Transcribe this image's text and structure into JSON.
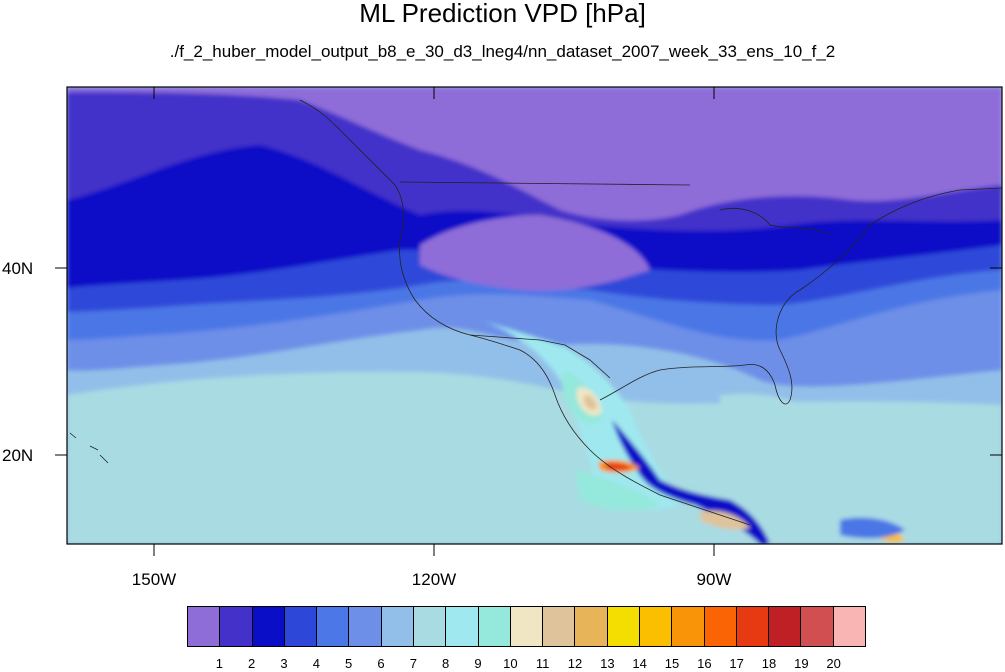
{
  "title": "ML Prediction VPD [hPa]",
  "subtitle": "./f_2_huber_model_output_b8_e_30_d3_lneg4/nn_dataset_2007_week_33_ens_10_f_2",
  "map": {
    "projection": "cylindrical equidistant",
    "lon_range": [
      -160,
      -59
    ],
    "lat_range": [
      10,
      59
    ],
    "lon_labels": [
      "150W",
      "120W",
      "90W"
    ],
    "lat_labels": [
      "40N",
      "20N"
    ]
  },
  "colorbar": {
    "labels": [
      "1",
      "2",
      "3",
      "4",
      "5",
      "6",
      "7",
      "8",
      "9",
      "10",
      "11",
      "12",
      "13",
      "14",
      "15",
      "16",
      "17",
      "18",
      "19",
      "20"
    ],
    "colors": [
      "#8f6dd9",
      "#4331c9",
      "#0a0fc7",
      "#2d48d9",
      "#4c77e6",
      "#6d8fe8",
      "#92bfe9",
      "#a9dbe3",
      "#9fe8ef",
      "#95e8dc",
      "#f1e6c4",
      "#dfc39a",
      "#e7b45a",
      "#f4dd00",
      "#fbbf00",
      "#f99408",
      "#fa6405",
      "#e83a12",
      "#be2025",
      "#d14f51",
      "#f9b4b4"
    ]
  }
}
